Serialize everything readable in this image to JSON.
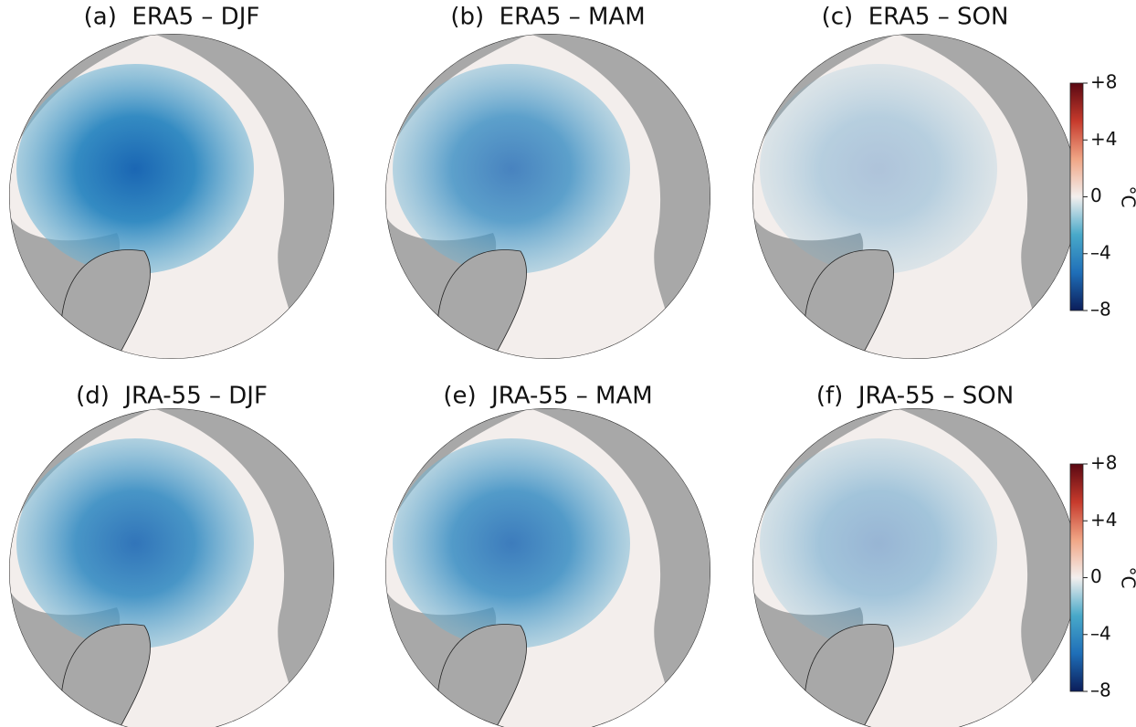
{
  "panels": [
    {
      "title": "(a)  ERA5 – DJF"
    },
    {
      "title": "(b)  ERA5 – MAM"
    },
    {
      "title": "(c)  ERA5 – SON"
    },
    {
      "title": "(d)  JRA-55 – DJF"
    },
    {
      "title": "(e)  JRA-55 – MAM"
    },
    {
      "title": "(f)  JRA-55 – SON"
    }
  ],
  "colormap": [
    "#0b1d5a",
    "#1f6fb8",
    "#49a9c9",
    "#f3efee",
    "#f0a585",
    "#c63a2c",
    "#5a0812"
  ],
  "colorbars": [
    {
      "vlim": [
        -8,
        8
      ],
      "label": "°C",
      "ticks": [
        {
          "value": 8,
          "label": "+8"
        },
        {
          "value": 4,
          "label": "+4"
        },
        0,
        {
          "value": -4,
          "label": "–4"
        },
        {
          "value": -8,
          "label": "–8"
        }
      ]
    },
    {
      "vlim": [
        -8,
        8
      ],
      "label": "°C",
      "ticks": [
        {
          "value": 8,
          "label": "+8"
        },
        {
          "value": 4,
          "label": "+4"
        },
        0,
        {
          "value": -4,
          "label": "–4"
        },
        {
          "value": -8,
          "label": "–8"
        }
      ]
    }
  ]
}
